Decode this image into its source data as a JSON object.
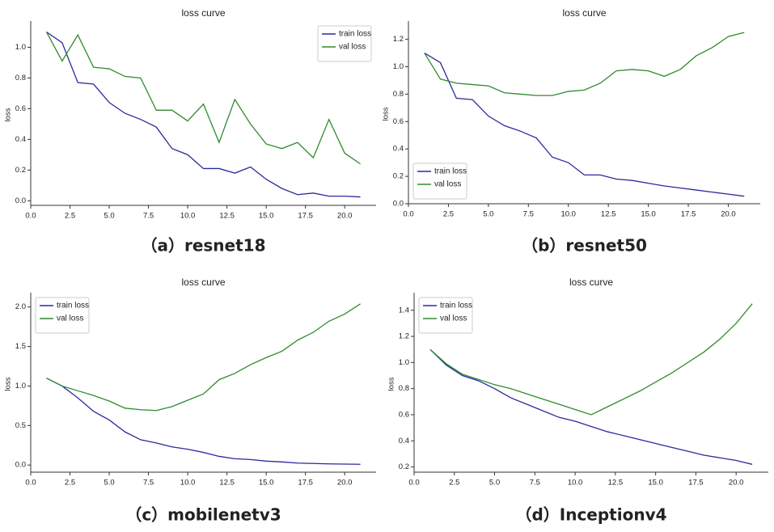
{
  "chart_data": [
    {
      "type": "line",
      "title": "loss curve",
      "ylabel": "loss",
      "caption": "（a）resnet18",
      "x": [
        1,
        2,
        3,
        4,
        5,
        6,
        7,
        8,
        9,
        10,
        11,
        12,
        13,
        14,
        15,
        16,
        17,
        18,
        19,
        20,
        21
      ],
      "series": [
        {
          "name": "train loss",
          "color": "#2a2a9e",
          "values": [
            1.1,
            1.03,
            0.77,
            0.76,
            0.64,
            0.57,
            0.53,
            0.48,
            0.34,
            0.3,
            0.21,
            0.21,
            0.18,
            0.22,
            0.14,
            0.08,
            0.04,
            0.05,
            0.03,
            0.03,
            0.025
          ]
        },
        {
          "name": "val loss",
          "color": "#2e8b2e",
          "values": [
            1.1,
            0.91,
            1.08,
            0.87,
            0.86,
            0.81,
            0.8,
            0.59,
            0.59,
            0.52,
            0.63,
            0.38,
            0.66,
            0.5,
            0.37,
            0.34,
            0.38,
            0.28,
            0.53,
            0.31,
            0.24
          ]
        }
      ],
      "xlim": [
        0,
        22
      ],
      "ylim": [
        -0.03,
        1.15
      ],
      "xticks": [
        {
          "value": 0,
          "label": "0.0"
        },
        2.5,
        {
          "value": 5,
          "label": "5.0"
        },
        7.5,
        {
          "value": 10,
          "label": "10.0"
        },
        12.5,
        {
          "value": 15,
          "label": "15.0"
        },
        17.5,
        {
          "value": 20,
          "label": "20.0"
        }
      ],
      "yticks": [
        {
          "value": 0,
          "label": "0.0"
        },
        0.2,
        0.4,
        0.6,
        0.8,
        {
          "value": 1,
          "label": "1.0"
        }
      ],
      "legend": "upper right"
    },
    {
      "type": "line",
      "title": "loss curve",
      "ylabel": "loss",
      "caption": "（b）resnet50",
      "x": [
        1,
        2,
        3,
        4,
        5,
        6,
        7,
        8,
        9,
        10,
        11,
        12,
        13,
        14,
        15,
        16,
        17,
        18,
        19,
        20,
        21
      ],
      "series": [
        {
          "name": "train loss",
          "color": "#2a2a9e",
          "values": [
            1.1,
            1.03,
            0.77,
            0.76,
            0.64,
            0.57,
            0.53,
            0.48,
            0.34,
            0.3,
            0.21,
            0.21,
            0.18,
            0.17,
            0.15,
            0.13,
            0.115,
            0.1,
            0.085,
            0.07,
            0.055
          ]
        },
        {
          "name": "val loss",
          "color": "#2e8b2e",
          "values": [
            1.1,
            0.91,
            0.88,
            0.87,
            0.86,
            0.81,
            0.8,
            0.79,
            0.79,
            0.82,
            0.83,
            0.88,
            0.97,
            0.98,
            0.97,
            0.93,
            0.98,
            1.08,
            1.14,
            1.22,
            1.25
          ]
        }
      ],
      "xlim": [
        0,
        22
      ],
      "ylim": [
        0,
        1.31
      ],
      "xticks": [
        {
          "value": 0,
          "label": "0.0"
        },
        2.5,
        {
          "value": 5,
          "label": "5.0"
        },
        7.5,
        {
          "value": 10,
          "label": "10.0"
        },
        12.5,
        {
          "value": 15,
          "label": "15.0"
        },
        17.5,
        {
          "value": 20,
          "label": "20.0"
        }
      ],
      "yticks": [
        {
          "value": 0,
          "label": "0.0"
        },
        0.2,
        0.4,
        0.6,
        0.8,
        {
          "value": 1,
          "label": "1.0"
        },
        1.2
      ],
      "legend": "lower left"
    },
    {
      "type": "line",
      "title": "loss curve",
      "ylabel": "loss",
      "caption": "（c）mobilenetv3",
      "x": [
        1,
        2,
        3,
        4,
        5,
        6,
        7,
        8,
        9,
        10,
        11,
        12,
        13,
        14,
        15,
        16,
        17,
        18,
        19,
        20,
        21
      ],
      "series": [
        {
          "name": "train loss",
          "color": "#2a2a9e",
          "values": [
            1.1,
            1.0,
            0.85,
            0.68,
            0.57,
            0.42,
            0.32,
            0.28,
            0.23,
            0.2,
            0.16,
            0.11,
            0.08,
            0.07,
            0.05,
            0.04,
            0.025,
            0.02,
            0.015,
            0.012,
            0.01
          ]
        },
        {
          "name": "val loss",
          "color": "#2e8b2e",
          "values": [
            1.1,
            1.0,
            0.94,
            0.88,
            0.81,
            0.72,
            0.7,
            0.69,
            0.74,
            0.82,
            0.9,
            1.08,
            1.16,
            1.27,
            1.36,
            1.44,
            1.58,
            1.68,
            1.82,
            1.91,
            2.04
          ]
        }
      ],
      "xlim": [
        0,
        22
      ],
      "ylim": [
        -0.09,
        2.14
      ],
      "xticks": [
        {
          "value": 0,
          "label": "0.0"
        },
        2.5,
        {
          "value": 5,
          "label": "5.0"
        },
        7.5,
        {
          "value": 10,
          "label": "10.0"
        },
        12.5,
        {
          "value": 15,
          "label": "15.0"
        },
        17.5,
        {
          "value": 20,
          "label": "20.0"
        }
      ],
      "yticks": [
        {
          "value": 0,
          "label": "0.0"
        },
        0.5,
        {
          "value": 1,
          "label": "1.0"
        },
        1.5,
        {
          "value": 2,
          "label": "2.0"
        }
      ],
      "legend": "upper left"
    },
    {
      "type": "line",
      "title": "loss curve",
      "ylabel": "loss",
      "caption": "（d）Inceptionv4",
      "x": [
        1,
        2,
        3,
        4,
        5,
        6,
        7,
        8,
        9,
        10,
        11,
        12,
        13,
        14,
        15,
        16,
        17,
        18,
        19,
        20,
        21
      ],
      "series": [
        {
          "name": "train loss",
          "color": "#2a2a9e",
          "values": [
            1.1,
            0.98,
            0.9,
            0.86,
            0.8,
            0.73,
            0.68,
            0.63,
            0.58,
            0.55,
            0.51,
            0.47,
            0.44,
            0.41,
            0.38,
            0.35,
            0.32,
            0.29,
            0.27,
            0.25,
            0.22
          ]
        },
        {
          "name": "val loss",
          "color": "#2e8b2e",
          "values": [
            1.1,
            0.99,
            0.91,
            0.87,
            0.83,
            0.8,
            0.76,
            0.72,
            0.68,
            0.64,
            0.6,
            0.66,
            0.72,
            0.78,
            0.85,
            0.92,
            1.0,
            1.08,
            1.18,
            1.3,
            1.45
          ]
        }
      ],
      "xlim": [
        0,
        22
      ],
      "ylim": [
        0.16,
        1.51
      ],
      "xticks": [
        {
          "value": 0,
          "label": "0.0"
        },
        2.5,
        {
          "value": 5,
          "label": "5.0"
        },
        7.5,
        {
          "value": 10,
          "label": "10.0"
        },
        12.5,
        {
          "value": 15,
          "label": "15.0"
        },
        17.5,
        {
          "value": 20,
          "label": "20.0"
        }
      ],
      "yticks": [
        0.2,
        0.4,
        0.6,
        0.8,
        {
          "value": 1,
          "label": "1.0"
        },
        1.2,
        1.4
      ],
      "legend": "upper left"
    }
  ]
}
